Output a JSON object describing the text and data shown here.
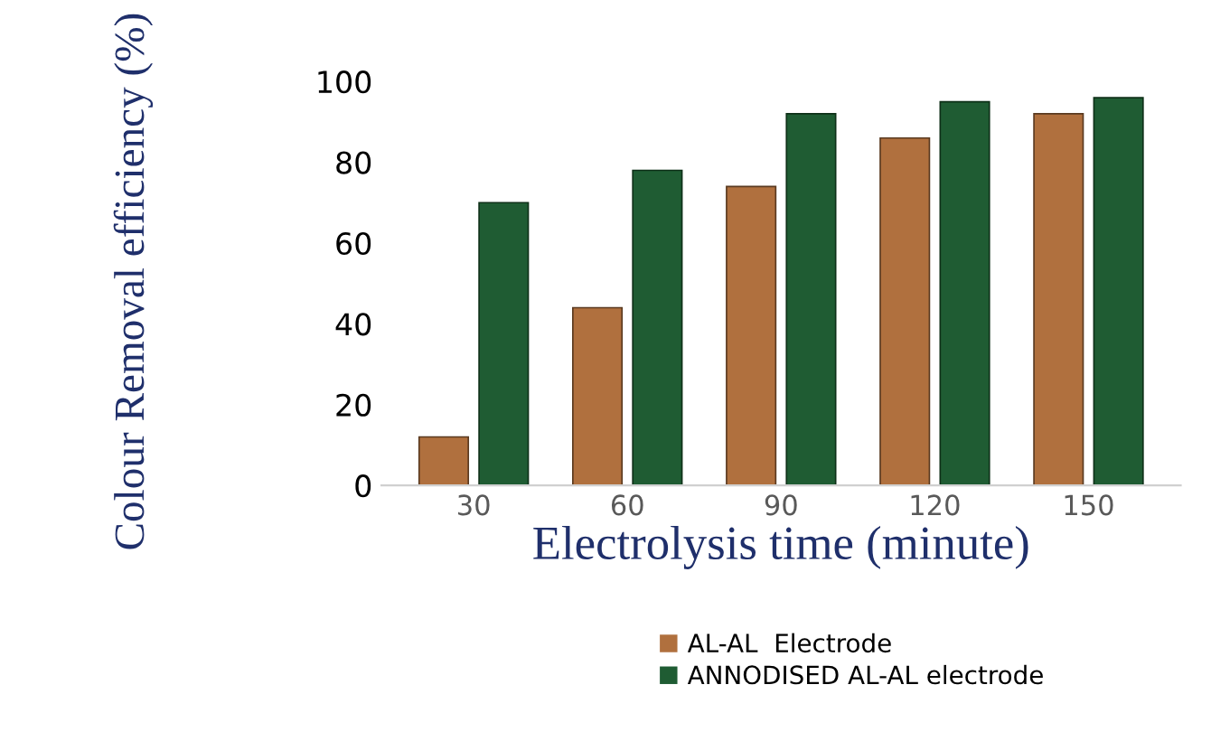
{
  "chart_data": {
    "type": "bar",
    "xlabel": "Electrolysis time (minute)",
    "ylabel": "Colour Removal efficiency (%)",
    "categories": [
      "30",
      "60",
      "90",
      "120",
      "150"
    ],
    "series": [
      {
        "name": "AL-AL  Electrode",
        "color": "#b0703e",
        "values": [
          12,
          44,
          74,
          86,
          92
        ]
      },
      {
        "name": "ANNODISED AL-AL electrode",
        "color": "#1f5c33",
        "values": [
          70,
          78,
          92,
          95,
          96
        ]
      }
    ],
    "ylim": [
      0,
      100
    ],
    "yticks": [
      0,
      20,
      40,
      60,
      80,
      100
    ],
    "grid": false,
    "legend": "bottom"
  }
}
